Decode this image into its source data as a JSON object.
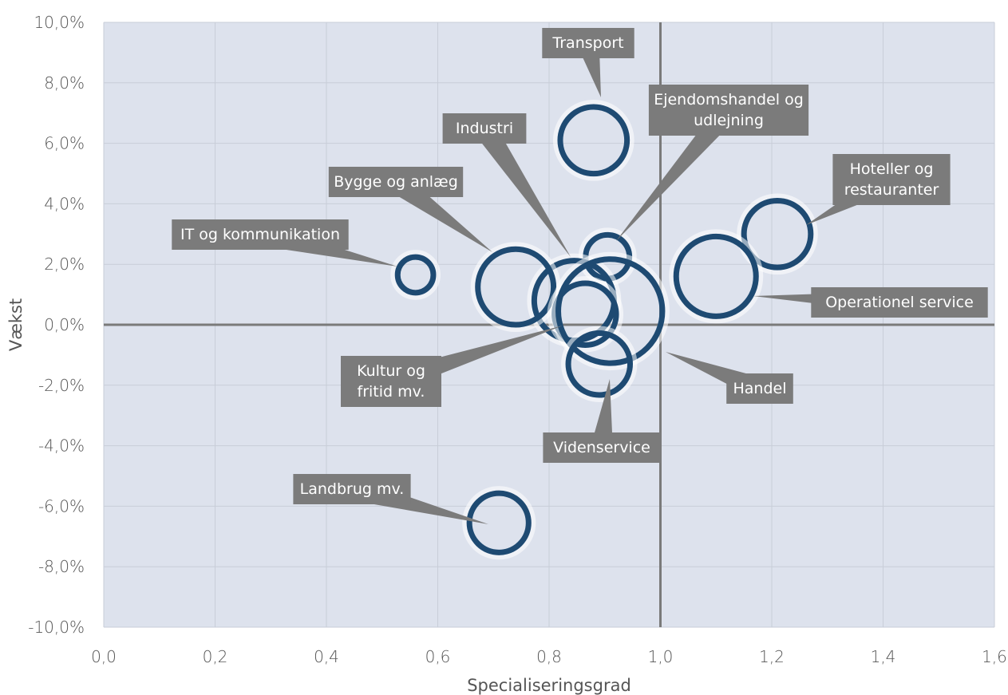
{
  "chart_data": {
    "type": "scatter",
    "subtype": "bubble",
    "xlabel": "Specialiseringsgrad",
    "ylabel": "Vækst",
    "xlim": [
      0.0,
      1.6
    ],
    "ylim": [
      -10.0,
      10.0
    ],
    "x_ticks": [
      "0,0",
      "0,2",
      "0,4",
      "0,6",
      "0,8",
      "1,0",
      "1,2",
      "1,4",
      "1,6"
    ],
    "y_ticks": [
      "10,0%",
      "8,0%",
      "6,0%",
      "4,0%",
      "2,0%",
      "0,0%",
      "-2,0%",
      "-4,0%",
      "-6,0%",
      "-8,0%",
      "-10,0%"
    ],
    "grid": true,
    "reference_lines": {
      "x": 1.0,
      "y": 0.0
    },
    "colors": {
      "plot_background": "#dde2ed",
      "bubble_stroke": "#1e4a72",
      "callout_fill": "#7b7b7b",
      "reference_line": "#7a7a7a"
    },
    "points": [
      {
        "label": "Transport",
        "x": 0.88,
        "y": 6.1,
        "size": 0.7
      },
      {
        "label": "Ejendomshandel og\nudlejning",
        "x": 0.905,
        "y": 2.25,
        "size": 0.3
      },
      {
        "label": "Industri",
        "x": 0.845,
        "y": 0.8,
        "size": 1.0
      },
      {
        "label": "Hoteller og\nrestauranter",
        "x": 1.21,
        "y": 3.0,
        "size": 0.7
      },
      {
        "label": "Bygge og anlæg",
        "x": 0.74,
        "y": 1.25,
        "size": 0.9
      },
      {
        "label": "IT og kommunikation",
        "x": 0.56,
        "y": 1.65,
        "size": 0.2
      },
      {
        "label": "Operationel service",
        "x": 1.1,
        "y": 1.6,
        "size": 1.0
      },
      {
        "label": "Kultur og\nfritid mv.",
        "x": 0.865,
        "y": 0.35,
        "size": 0.6
      },
      {
        "label": "Handel",
        "x": 0.91,
        "y": 0.45,
        "size": 1.7
      },
      {
        "label": "Videnservice",
        "x": 0.89,
        "y": -1.3,
        "size": 0.6
      },
      {
        "label": "Landbrug mv.",
        "x": 0.71,
        "y": -6.55,
        "size": 0.55
      }
    ]
  }
}
